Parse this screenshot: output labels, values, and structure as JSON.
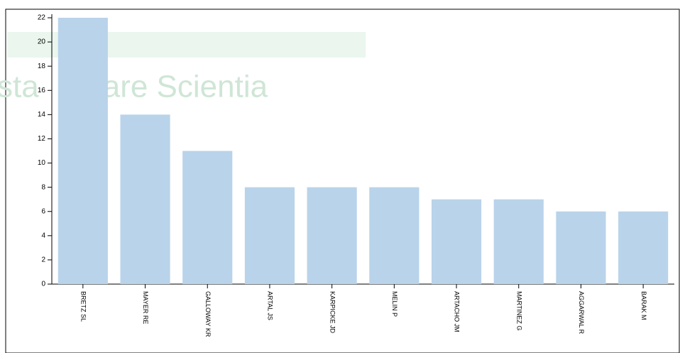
{
  "chart_data": {
    "type": "bar",
    "categories": [
      "BRETZ SL",
      "MAYER RE",
      "GALLOWAY KR",
      "ARTAL JS",
      "KARPICKE JD",
      "MELIN P",
      "ARTACHO JM",
      "MARTINEZ G",
      "AGGARWAL R",
      "BARAK M"
    ],
    "values": [
      22,
      14,
      11,
      8,
      8,
      8,
      7,
      7,
      6,
      6
    ],
    "color": "#b9d3ea",
    "ylim": [
      0,
      22
    ],
    "yticks": [
      0,
      2,
      4,
      6,
      8,
      10,
      12,
      14,
      16,
      18,
      20,
      22
    ],
    "watermark": [
      "sta",
      "ignare Scientia"
    ]
  }
}
